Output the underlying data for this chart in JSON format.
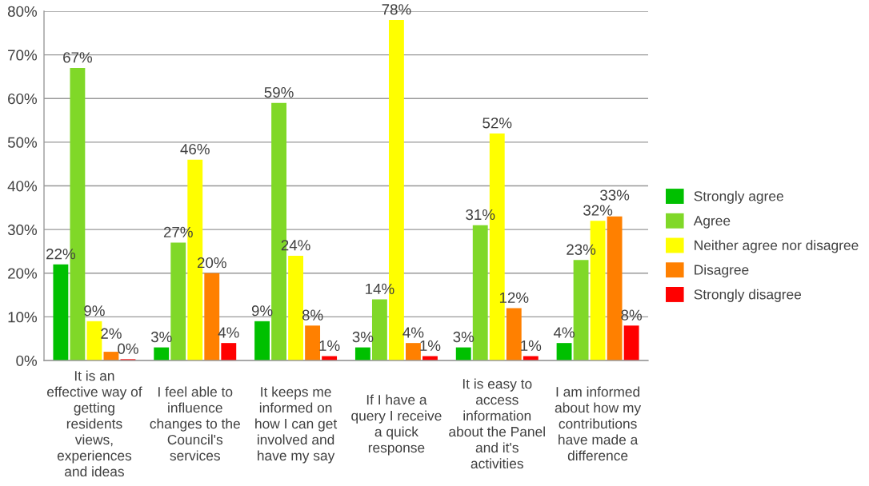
{
  "chart_data": {
    "type": "bar",
    "categories": [
      "It is an\neffective way of\ngetting\nresidents\nviews,\nexperiences\nand ideas",
      "I feel able to\ninfluence\nchanges to the\nCouncil's\nservices",
      "It keeps me\ninformed on\nhow I can get\ninvolved and\nhave my say",
      "If I have a\nquery I receive\na quick\nresponse",
      "It is easy to\naccess\ninformation\nabout the Panel\nand it's\nactivities",
      "I am informed\nabout how my\ncontributions\nhave made a\ndifference"
    ],
    "series": [
      {
        "name": "Strongly agree",
        "color": "#00c000",
        "values": [
          22,
          3,
          9,
          3,
          3,
          4
        ],
        "value_labels": [
          "22%",
          "3%",
          "9%",
          "3%",
          "3%",
          "4%"
        ]
      },
      {
        "name": "Agree",
        "color": "#80d828",
        "values": [
          67,
          27,
          59,
          14,
          31,
          23
        ],
        "value_labels": [
          "67%",
          "27%",
          "59%",
          "14%",
          "31%",
          "23%"
        ]
      },
      {
        "name": "Neither agree nor disagree",
        "color": "#ffff00",
        "values": [
          9,
          46,
          24,
          78,
          52,
          32
        ],
        "value_labels": [
          "9%",
          "46%",
          "24%",
          "78%",
          "52%",
          "32%"
        ]
      },
      {
        "name": "Disagree",
        "color": "#ff8000",
        "values": [
          2,
          20,
          8,
          4,
          12,
          33
        ],
        "value_labels": [
          "2%",
          "20%",
          "8%",
          "4%",
          "12%",
          "33%"
        ]
      },
      {
        "name": "Strongly disagree",
        "color": "#ff0000",
        "values": [
          0.3,
          4,
          1,
          1,
          1,
          8
        ],
        "value_labels": [
          "0%",
          "4%",
          "1%",
          "1%",
          "1%",
          "8%"
        ]
      }
    ],
    "ylim": [
      0,
      80
    ],
    "yticks": [
      {
        "value": 0,
        "label": "0%"
      },
      {
        "value": 10,
        "label": "10%"
      },
      {
        "value": 20,
        "label": "20%"
      },
      {
        "value": 30,
        "label": "30%"
      },
      {
        "value": 40,
        "label": "40%"
      },
      {
        "value": 50,
        "label": "50%"
      },
      {
        "value": 60,
        "label": "60%"
      },
      {
        "value": 70,
        "label": "70%"
      },
      {
        "value": 80,
        "label": "80%"
      }
    ],
    "grid": "y",
    "legend": "right"
  }
}
